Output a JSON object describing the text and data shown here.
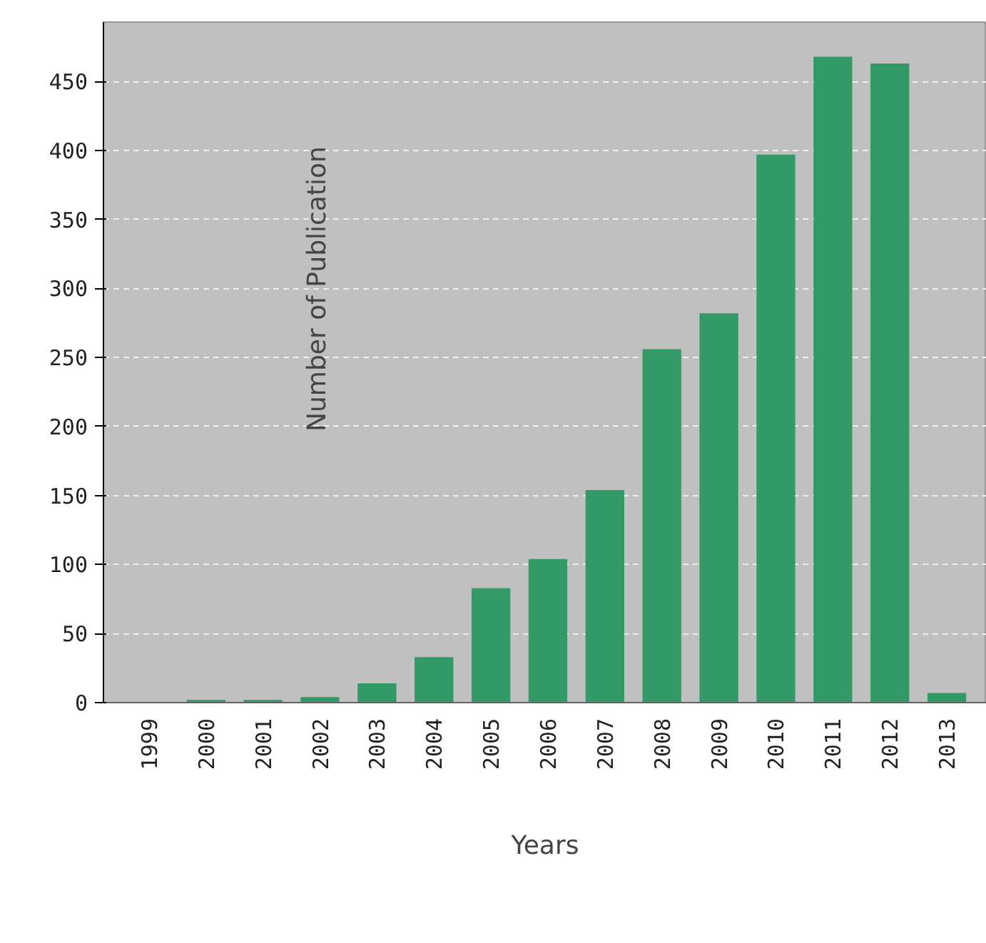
{
  "chart_data": {
    "type": "bar",
    "xlabel": "Years",
    "ylabel": "Number of Publication",
    "categories": [
      "1999",
      "2000",
      "2001",
      "2002",
      "2003",
      "2004",
      "2005",
      "2006",
      "2007",
      "2008",
      "2009",
      "2010",
      "2011",
      "2012",
      "2013"
    ],
    "values": [
      0,
      2,
      2,
      4,
      14,
      33,
      83,
      104,
      154,
      256,
      282,
      397,
      468,
      463,
      7
    ],
    "color": "#339966",
    "ylim": [
      0,
      493
    ],
    "yticks": [
      0,
      50,
      100,
      150,
      200,
      250,
      300,
      350,
      400,
      450
    ],
    "grid": "y"
  }
}
